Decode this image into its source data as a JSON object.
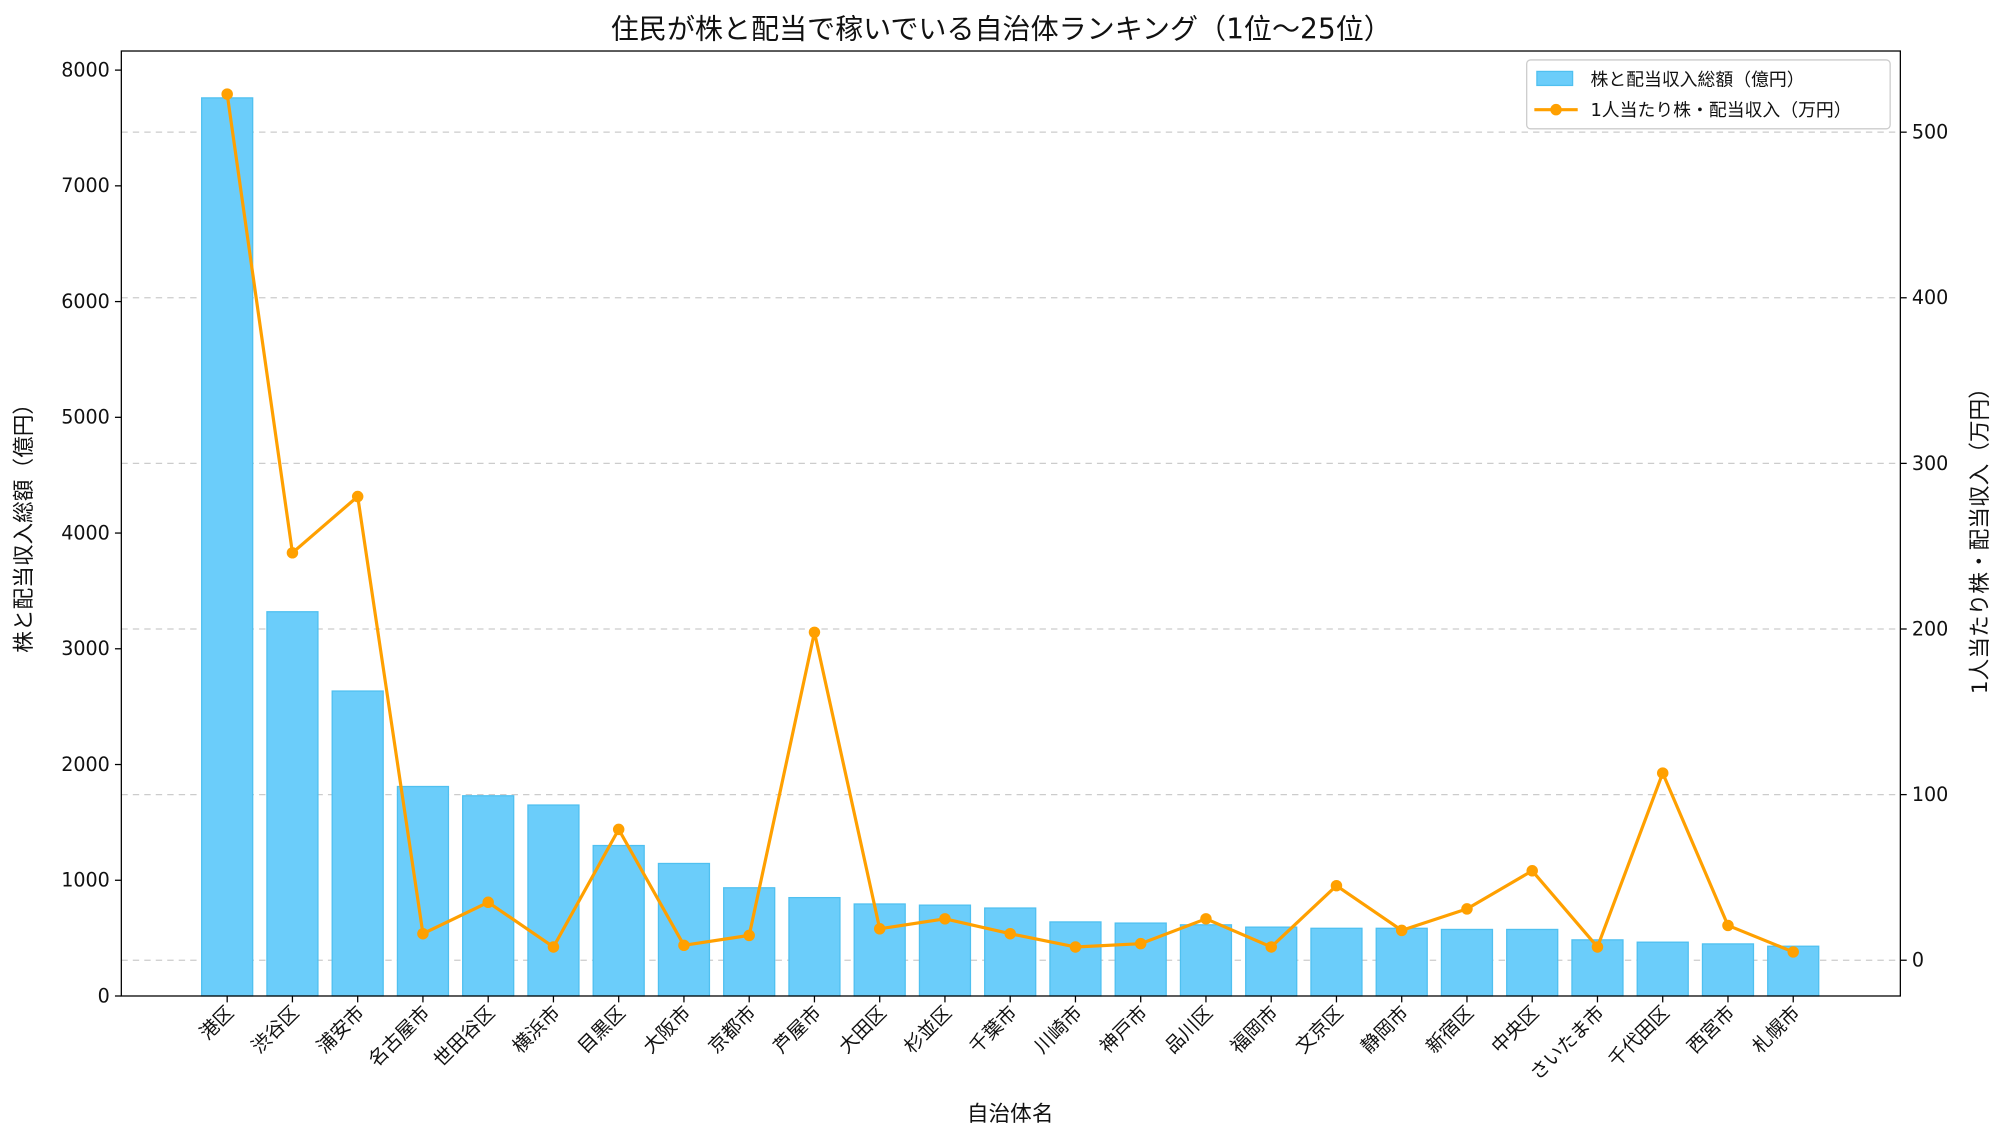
{
  "chart_data": {
    "type": "bar+line",
    "title": "住民が株と配当で稼いでいる自治体ランキング（1位〜25位）",
    "xlabel": "自治体名",
    "ylabel": "株と配当収入総額（億円）",
    "y2label": "1人当たり株・配当収入（万円）",
    "categories": [
      "港区",
      "渋谷区",
      "浦安市",
      "名古屋市",
      "世田谷区",
      "横浜市",
      "目黒区",
      "大阪市",
      "京都市",
      "芦屋市",
      "大田区",
      "杉並区",
      "千葉市",
      "川崎市",
      "神戸市",
      "品川区",
      "福岡市",
      "文京区",
      "静岡市",
      "新宿区",
      "中央区",
      "さいたま市",
      "千代田区",
      "西宮市",
      "札幌市"
    ],
    "series": [
      {
        "name": "株と配当収入総額（億円）",
        "type": "bar",
        "axis": "left",
        "color": "#6bcdfa",
        "values": [
          7760,
          3320,
          2635,
          1810,
          1730,
          1650,
          1300,
          1145,
          935,
          850,
          795,
          785,
          760,
          640,
          630,
          615,
          595,
          585,
          585,
          575,
          575,
          485,
          465,
          450,
          430
        ]
      },
      {
        "name": "1人当たり株・配当収入（万円）",
        "type": "line",
        "axis": "right",
        "color": "#ffa000",
        "values": [
          523,
          246,
          280,
          16,
          35,
          8,
          79,
          9,
          15,
          198,
          19,
          25,
          16,
          8,
          10,
          25,
          8,
          45,
          18,
          31,
          54,
          8,
          113,
          21,
          5
        ]
      }
    ],
    "ylim": [
      0,
      8165
    ],
    "yticks": [
      0,
      1000,
      2000,
      3000,
      4000,
      5000,
      6000,
      7000,
      8000
    ],
    "y2lim": [
      -21.6,
      549
    ],
    "y2ticks": [
      0,
      100,
      200,
      300,
      400,
      500
    ],
    "grid": "horizontal dashed (right axis)",
    "legend": "top-right"
  }
}
